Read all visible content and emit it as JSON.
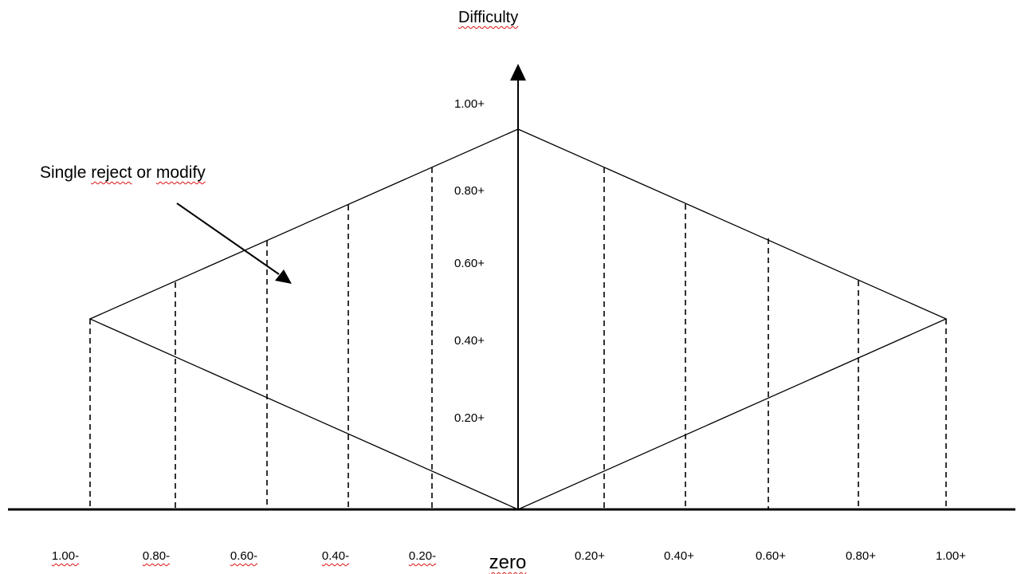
{
  "diagram": {
    "title": "Difficulty",
    "annotation": {
      "prefix": "Single ",
      "word1": "reject",
      "middle": " or ",
      "word2": "modify"
    },
    "y_ticks": [
      "1.00+",
      "0.80+",
      "0.60+",
      "0.40+",
      "0.20+"
    ],
    "x_ticks_left": [
      "1.00-",
      "0.80-",
      "0.60-",
      "0.40-",
      "0.20-"
    ],
    "x_center_label": "zero",
    "x_ticks_right": [
      "0.20+",
      "0.40+",
      "0.60+",
      "0.80+",
      "1.00+"
    ],
    "colors": {
      "line": "#000000",
      "spellcheck": "#d11111"
    }
  }
}
